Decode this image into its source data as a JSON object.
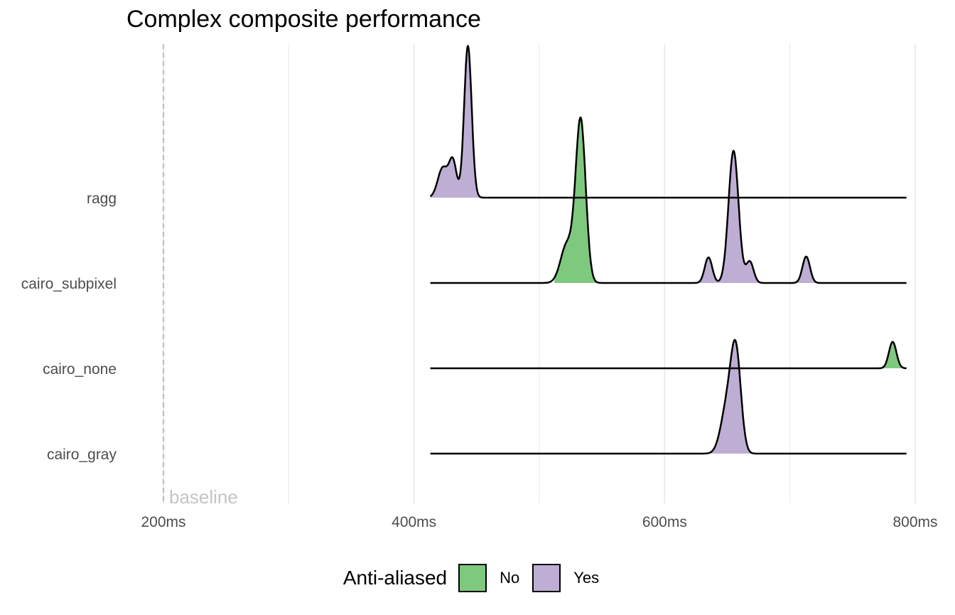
{
  "chart_data": {
    "type": "ridgeline",
    "title": "Complex composite performance",
    "xlabel": "",
    "ylabel": "",
    "x_unit": "ms",
    "xlim": [
      200,
      800
    ],
    "x_ticks": [
      200,
      400,
      600,
      800
    ],
    "x_tick_labels": [
      "200ms",
      "400ms",
      "600ms",
      "800ms"
    ],
    "grid": true,
    "baseline": {
      "value": 200,
      "label": "baseline"
    },
    "categories": [
      "ragg",
      "cairo_subpixel",
      "cairo_none",
      "cairo_gray"
    ],
    "series": [
      {
        "category": "ragg",
        "range": [
          413,
          793
        ],
        "segments": [
          {
            "anti_aliased": "Yes",
            "range": [
              413,
              460
            ],
            "peaks": [
              {
                "x": 423,
                "height": 0.35,
                "sd": 4
              },
              {
                "x": 431,
                "height": 0.42,
                "sd": 3
              },
              {
                "x": 443,
                "height": 1.78,
                "sd": 3
              }
            ]
          }
        ]
      },
      {
        "category": "cairo_subpixel",
        "range": [
          413,
          793
        ],
        "segments": [
          {
            "anti_aliased": "No",
            "range": [
              512,
              552
            ],
            "peaks": [
              {
                "x": 522,
                "height": 0.45,
                "sd": 5
              },
              {
                "x": 533,
                "height": 1.9,
                "sd": 4
              }
            ]
          },
          {
            "anti_aliased": "Yes",
            "range": [
              622,
              682
            ],
            "peaks": [
              {
                "x": 635,
                "height": 0.3,
                "sd": 3
              },
              {
                "x": 655,
                "height": 1.55,
                "sd": 4
              },
              {
                "x": 668,
                "height": 0.25,
                "sd": 3
              }
            ]
          },
          {
            "anti_aliased": "Yes",
            "range": [
              695,
              730
            ],
            "peaks": [
              {
                "x": 713,
                "height": 0.31,
                "sd": 3
              }
            ]
          }
        ]
      },
      {
        "category": "cairo_none",
        "range": [
          413,
          793
        ],
        "segments": [
          {
            "anti_aliased": "No",
            "range": [
              762,
              793
            ],
            "peaks": [
              {
                "x": 782,
                "height": 0.31,
                "sd": 3
              }
            ]
          }
        ]
      },
      {
        "category": "cairo_gray",
        "range": [
          413,
          793
        ],
        "segments": [
          {
            "anti_aliased": "Yes",
            "range": [
              635,
              675
            ],
            "peaks": [
              {
                "x": 650,
                "height": 0.55,
                "sd": 5
              },
              {
                "x": 657,
                "height": 1.1,
                "sd": 4
              }
            ]
          }
        ]
      }
    ],
    "legend": {
      "title": "Anti-aliased",
      "position": "bottom",
      "items": [
        {
          "label": "No",
          "color": "#7fc97f"
        },
        {
          "label": "Yes",
          "color": "#beaed4"
        }
      ]
    }
  }
}
